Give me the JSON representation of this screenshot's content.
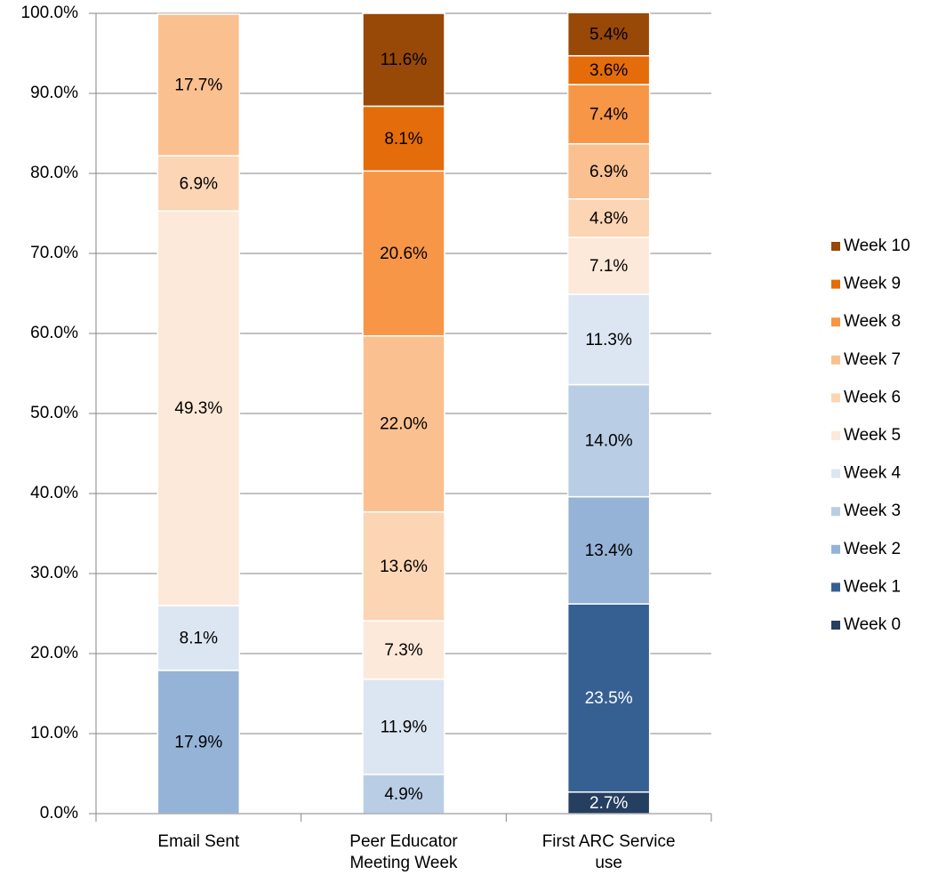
{
  "chart_data": {
    "type": "stacked_bar",
    "categories": [
      "Email Sent",
      "Peer Educator Meeting Week",
      "First ARC Service use"
    ],
    "series": [
      {
        "name": "Week 0",
        "color": "#243f60",
        "label_color": "#ffffff",
        "values": [
          null,
          null,
          2.7
        ],
        "value_labels": [
          null,
          null,
          "2.7%"
        ]
      },
      {
        "name": "Week 1",
        "color": "#376092",
        "label_color": "#ffffff",
        "values": [
          null,
          null,
          23.5
        ],
        "value_labels": [
          null,
          null,
          "23.5%"
        ]
      },
      {
        "name": "Week 2",
        "color": "#95b3d7",
        "label_color": "#000000",
        "values": [
          17.9,
          null,
          13.4
        ],
        "value_labels": [
          "17.9%",
          null,
          "13.4%"
        ]
      },
      {
        "name": "Week 3",
        "color": "#b9cde5",
        "label_color": "#000000",
        "values": [
          null,
          4.9,
          14.0
        ],
        "value_labels": [
          null,
          "4.9%",
          "14.0%"
        ]
      },
      {
        "name": "Week 4",
        "color": "#dce6f2",
        "label_color": "#000000",
        "values": [
          8.1,
          11.9,
          11.3
        ],
        "value_labels": [
          "8.1%",
          "11.9%",
          "11.3%"
        ]
      },
      {
        "name": "Week 5",
        "color": "#fde9d9",
        "label_color": "#000000",
        "values": [
          49.3,
          7.3,
          7.1
        ],
        "value_labels": [
          "49.3%",
          "7.3%",
          "7.1%"
        ]
      },
      {
        "name": "Week 6",
        "color": "#fcd5b5",
        "label_color": "#000000",
        "values": [
          6.9,
          13.6,
          4.8
        ],
        "value_labels": [
          "6.9%",
          "13.6%",
          "4.8%"
        ]
      },
      {
        "name": "Week 7",
        "color": "#fac090",
        "label_color": "#000000",
        "values": [
          17.7,
          22.0,
          6.9
        ],
        "value_labels": [
          "17.7%",
          "22.0%",
          "6.9%"
        ]
      },
      {
        "name": "Week 8",
        "color": "#f79646",
        "label_color": "#000000",
        "values": [
          null,
          20.6,
          7.4
        ],
        "value_labels": [
          null,
          "20.6%",
          "7.4%"
        ]
      },
      {
        "name": "Week 9",
        "color": "#e46c0a",
        "label_color": "#000000",
        "values": [
          null,
          8.1,
          3.6
        ],
        "value_labels": [
          null,
          "8.1%",
          "3.6%"
        ]
      },
      {
        "name": "Week 10",
        "color": "#984807",
        "label_color": "#000000",
        "values": [
          null,
          11.6,
          5.4
        ],
        "value_labels": [
          null,
          "11.6%",
          "5.4%"
        ]
      }
    ],
    "ylim": [
      0,
      100
    ],
    "yticks": [
      {
        "value": 0,
        "label": "0.0%"
      },
      {
        "value": 10,
        "label": "10.0%"
      },
      {
        "value": 20,
        "label": "20.0%"
      },
      {
        "value": 30,
        "label": "30.0%"
      },
      {
        "value": 40,
        "label": "40.0%"
      },
      {
        "value": 50,
        "label": "50.0%"
      },
      {
        "value": 60,
        "label": "60.0%"
      },
      {
        "value": 70,
        "label": "70.0%"
      },
      {
        "value": 80,
        "label": "80.0%"
      },
      {
        "value": 90,
        "label": "90.0%"
      },
      {
        "value": 100,
        "label": "100.0%"
      }
    ],
    "grid": true,
    "legend": "right"
  }
}
